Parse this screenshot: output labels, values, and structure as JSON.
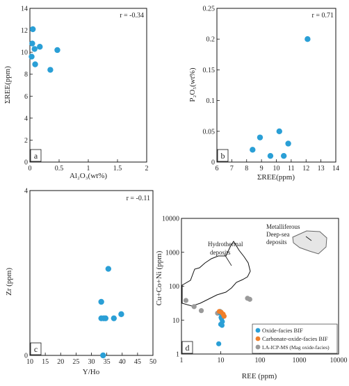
{
  "colors": {
    "point_blue": "#2a9fd6",
    "point_orange": "#f07f2a",
    "point_gray": "#9a9a9a",
    "region_fill": "#e6e6e6"
  },
  "panel_a": {
    "corner_label": "a",
    "r_label": "r = -0.34",
    "xlabel": "Al₂O₃(wt%)",
    "ylabel": "ΣREE(ppm)"
  },
  "panel_b": {
    "corner_label": "b",
    "r_label": "r = 0.71",
    "xlabel": "ΣREE(ppm)",
    "ylabel": "P₂O₅(wt%)"
  },
  "panel_c": {
    "corner_label": "c",
    "r_label": "r = -0.11",
    "xlabel": "Y/Ho",
    "ylabel": "Zr (ppm)"
  },
  "panel_d": {
    "corner_label": "d",
    "xlabel": "REE (ppm)",
    "ylabel": "Cu+Co+Ni (ppm)",
    "hydrothermal_label": [
      "Hydrothermal",
      "deposits"
    ],
    "metalliferous_label": [
      "Metalliferous",
      "Deep-sea",
      "deposits"
    ],
    "legend": [
      "Oxide-facies BIF",
      "Carbonate-oxide-facies BIF",
      "LA-ICP-MS (Mag oxide-facies)"
    ]
  },
  "chart_data": [
    {
      "id": "a",
      "type": "scatter",
      "xlim": [
        0,
        2
      ],
      "ylim": [
        0,
        14
      ],
      "xticks": [
        0,
        0.5,
        1,
        1.5,
        2
      ],
      "yticks": [
        0,
        2,
        4,
        6,
        8,
        10,
        12,
        14
      ],
      "x": [
        0.05,
        0.04,
        0.08,
        0.17,
        0.03,
        0.09,
        0.35,
        0.47
      ],
      "y": [
        12.1,
        10.8,
        10.3,
        10.5,
        9.6,
        8.9,
        8.4,
        10.2
      ]
    },
    {
      "id": "b",
      "type": "scatter",
      "xlim": [
        6,
        14
      ],
      "ylim": [
        0,
        0.25
      ],
      "xticks": [
        6,
        7,
        8,
        9,
        10,
        11,
        12,
        13,
        14
      ],
      "yticks": [
        0,
        0.05,
        0.1,
        0.15,
        0.2,
        0.25
      ],
      "x": [
        12.1,
        10.2,
        8.9,
        8.4,
        10.8,
        9.6,
        10.5
      ],
      "y": [
        0.2,
        0.05,
        0.04,
        0.02,
        0.03,
        0.01,
        0.01
      ]
    },
    {
      "id": "c",
      "type": "scatter",
      "xlim": [
        10,
        50
      ],
      "ylim": [
        0,
        4
      ],
      "xticks": [
        10,
        15,
        20,
        25,
        30,
        35,
        40,
        45,
        50
      ],
      "yticks": [
        0,
        4
      ],
      "x": [
        35.5,
        33.2,
        33.2,
        34.0,
        34.6,
        37.3,
        39.7,
        33.8
      ],
      "y": [
        2.1,
        1.3,
        0.9,
        0.9,
        0.9,
        0.9,
        1.0,
        0.0
      ]
    },
    {
      "id": "d",
      "type": "scatter",
      "xscale": "log",
      "yscale": "log",
      "xlim": [
        1,
        10000
      ],
      "ylim": [
        1,
        10000
      ],
      "xticks": [
        1,
        10,
        100,
        1000,
        10000
      ],
      "yticks": [
        1,
        10,
        100,
        1000,
        10000
      ],
      "series": [
        {
          "name": "Oxide-facies BIF",
          "color": "#2a9fd6",
          "x": [
            9.6,
            10.2,
            10.5,
            11.0,
            10.0,
            10.8,
            9.8,
            8.9
          ],
          "y": [
            18,
            12,
            11,
            9,
            7.5,
            7,
            16,
            2
          ]
        },
        {
          "name": "Carbonate-oxide-facies BIF",
          "color": "#f07f2a",
          "x": [
            9.2,
            10.3,
            11.5,
            12.2
          ],
          "y": [
            18,
            17,
            15,
            13
          ]
        },
        {
          "name": "LA-ICP-MS (Mag oxide-facies)",
          "color": "#9a9a9a",
          "x": [
            1.3,
            2.1,
            3.2,
            8.3,
            48,
            55
          ],
          "y": [
            38,
            25,
            19,
            16,
            44,
            41
          ]
        }
      ]
    }
  ]
}
